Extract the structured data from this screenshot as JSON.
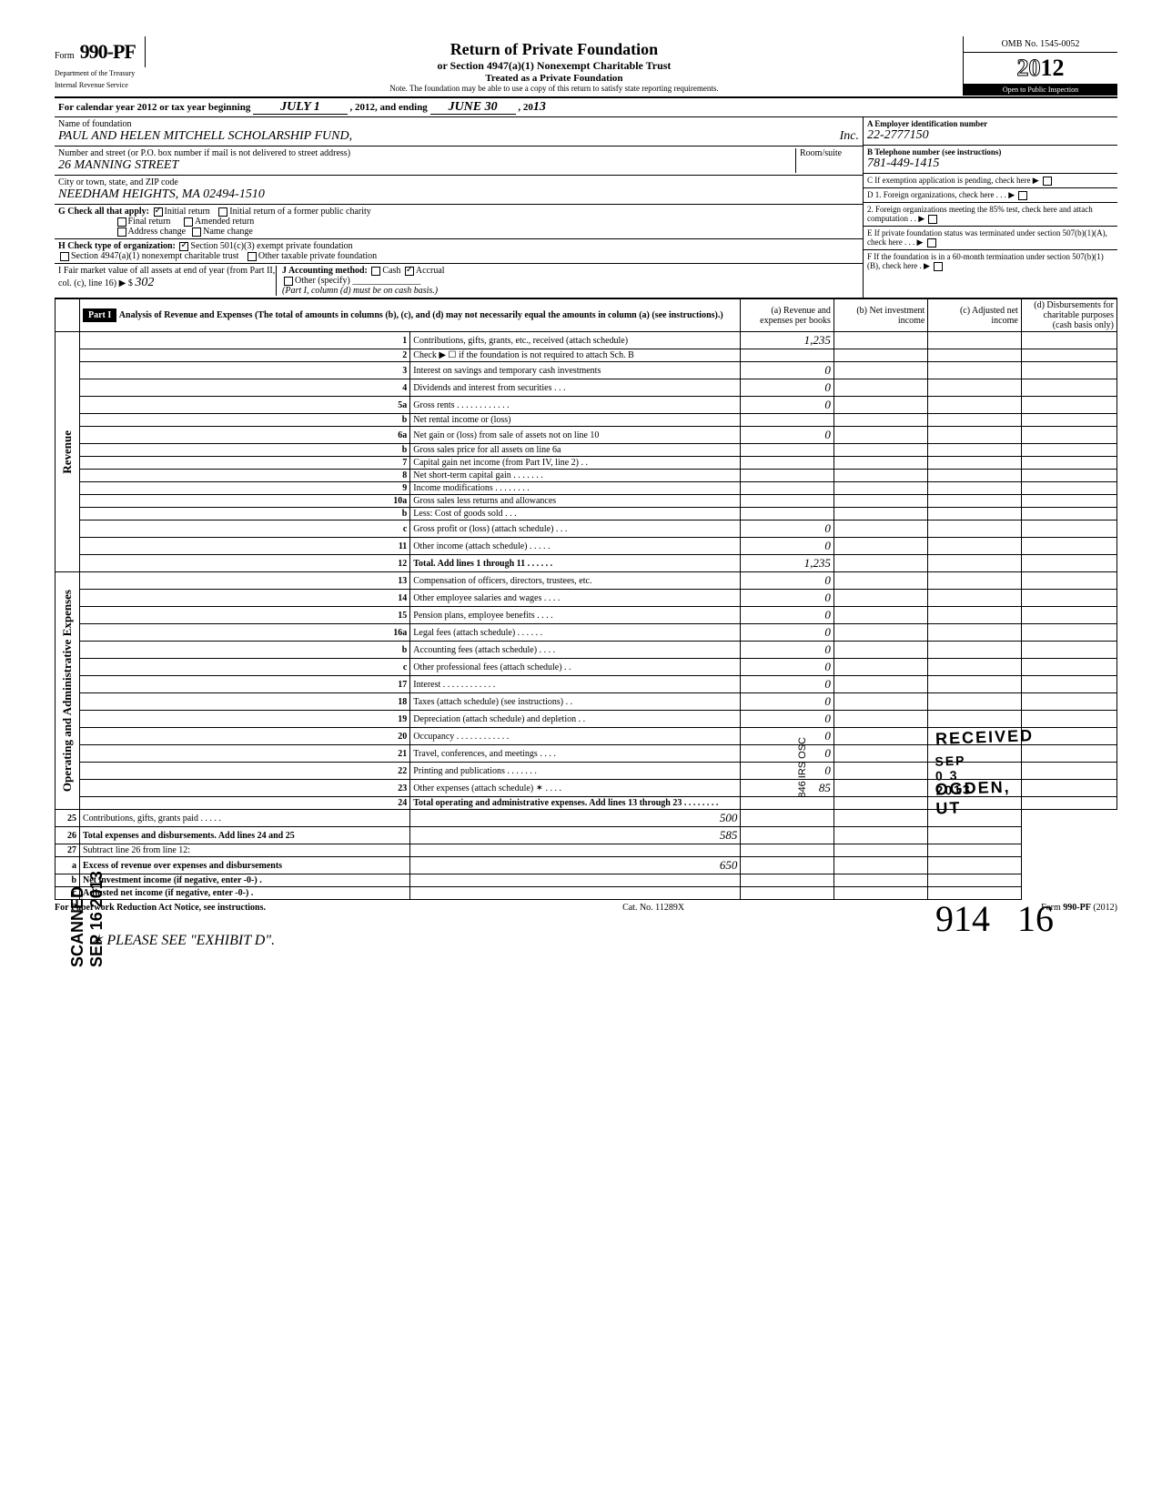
{
  "form": {
    "prefix": "Form",
    "number": "990-PF",
    "title": "Return of Private Foundation",
    "subtitle": "or Section 4947(a)(1) Nonexempt Charitable Trust",
    "subtitle2": "Treated as a Private Foundation",
    "note": "Note. The foundation may be able to use a copy of this return to satisfy state reporting requirements.",
    "dept1": "Department of the Treasury",
    "dept2": "Internal Revenue Service",
    "omb": "OMB No. 1545-0052",
    "year_prefix": "20",
    "year_bold": "12",
    "inspection": "Open to Public Inspection"
  },
  "cal": {
    "text": "For calendar year 2012 or tax year beginning",
    "begin": "JULY 1",
    "mid": ", 2012, and ending",
    "end": "JUNE 30",
    "end_yr_prefix": ", 20",
    "end_yr": "13"
  },
  "header": {
    "name_label": "Name of foundation",
    "name": "PAUL AND HELEN MITCHELL SCHOLARSHIP FUND,",
    "inc": "Inc.",
    "street_label": "Number and street (or P.O. box number if mail is not delivered to street address)",
    "street": "26 MANNING STREET",
    "room_label": "Room/suite",
    "city_label": "City or town, state, and ZIP code",
    "city": "NEEDHAM HEIGHTS, MA  02494-1510",
    "ein_label": "A Employer identification number",
    "ein": "22-2777150",
    "tel_label": "B Telephone number (see instructions)",
    "tel": "781-449-1415",
    "c_label": "C  If exemption application is pending, check here ▶",
    "d1_label": "D  1. Foreign organizations, check here . . . ▶",
    "d2_label": "2. Foreign organizations meeting the 85% test, check here and attach computation  . . ▶",
    "e_label": "E  If private foundation status was terminated under section 507(b)(1)(A), check here  . . . ▶",
    "f_label": "F  If the foundation is in a 60-month termination under section 507(b)(1)(B), check here  . ▶"
  },
  "g": {
    "label": "G  Check all that apply:",
    "initial": "Initial return",
    "initial_former": "Initial return of a former public charity",
    "final": "Final return",
    "amended": "Amended return",
    "address": "Address change",
    "name_change": "Name change"
  },
  "h": {
    "label": "H  Check type of organization:",
    "s501": "Section 501(c)(3) exempt private foundation",
    "s4947": "Section 4947(a)(1) nonexempt charitable trust",
    "other": "Other taxable private foundation"
  },
  "i": {
    "label": "I   Fair market value of all assets at end of year  (from Part II, col. (c), line 16) ▶ $",
    "value": "302",
    "j_label": "J  Accounting method:",
    "cash": "Cash",
    "accrual": "Accrual",
    "other_label": "Other (specify)",
    "note": "(Part I, column (d) must be on cash basis.)"
  },
  "part1": {
    "label": "Part I",
    "title": "Analysis of Revenue and Expenses (The total of amounts in columns (b), (c), and (d) may not necessarily equal the amounts in column (a) (see instructions).)",
    "col_a": "(a) Revenue and expenses per books",
    "col_b": "(b) Net investment income",
    "col_c": "(c) Adjusted net income",
    "col_d": "(d) Disbursements for charitable purposes (cash basis only)"
  },
  "sections": {
    "revenue": "Revenue",
    "expenses": "Operating and Administrative Expenses"
  },
  "lines": [
    {
      "n": "1",
      "d": "Contributions, gifts, grants, etc., received (attach schedule)",
      "a": "1,235"
    },
    {
      "n": "2",
      "d": "Check ▶ ☐ if the foundation is not required to attach Sch. B",
      "a": ""
    },
    {
      "n": "3",
      "d": "Interest on savings and temporary cash investments",
      "a": "0"
    },
    {
      "n": "4",
      "d": "Dividends and interest from securities  . . .",
      "a": "0"
    },
    {
      "n": "5a",
      "d": "Gross rents . . . . . . . . . . . .",
      "a": "0"
    },
    {
      "n": "b",
      "d": "Net rental income or (loss)",
      "a": ""
    },
    {
      "n": "6a",
      "d": "Net gain or (loss) from sale of assets not on line 10",
      "a": "0"
    },
    {
      "n": "b",
      "d": "Gross sales price for all assets on line 6a",
      "a": ""
    },
    {
      "n": "7",
      "d": "Capital gain net income (from Part IV, line 2) . .",
      "a": ""
    },
    {
      "n": "8",
      "d": "Net short-term capital gain . . . . . . .",
      "a": ""
    },
    {
      "n": "9",
      "d": "Income modifications  . . . . . . . .",
      "a": ""
    },
    {
      "n": "10a",
      "d": "Gross sales less returns and allowances",
      "a": ""
    },
    {
      "n": "b",
      "d": "Less: Cost of goods sold  . . .",
      "a": ""
    },
    {
      "n": "c",
      "d": "Gross profit or (loss) (attach schedule) . . .",
      "a": "0"
    },
    {
      "n": "11",
      "d": "Other income (attach schedule)  . . . . .",
      "a": "0"
    },
    {
      "n": "12",
      "d": "Total. Add lines 1 through 11 . . . . . .",
      "a": "1,235",
      "bold": true
    },
    {
      "n": "13",
      "d": "Compensation of officers, directors, trustees, etc.",
      "a": "0"
    },
    {
      "n": "14",
      "d": "Other employee salaries and wages . . . .",
      "a": "0"
    },
    {
      "n": "15",
      "d": "Pension plans, employee benefits  . . . .",
      "a": "0"
    },
    {
      "n": "16a",
      "d": "Legal fees (attach schedule)  . . . . . .",
      "a": "0"
    },
    {
      "n": "b",
      "d": "Accounting fees (attach schedule)  . . . .",
      "a": "0"
    },
    {
      "n": "c",
      "d": "Other professional fees (attach schedule) . .",
      "a": "0"
    },
    {
      "n": "17",
      "d": "Interest  . . . . . . . . . . . .",
      "a": "0"
    },
    {
      "n": "18",
      "d": "Taxes (attach schedule) (see instructions)  . .",
      "a": "0"
    },
    {
      "n": "19",
      "d": "Depreciation (attach schedule) and depletion . .",
      "a": "0"
    },
    {
      "n": "20",
      "d": "Occupancy . . . . . . . . . . . .",
      "a": "0"
    },
    {
      "n": "21",
      "d": "Travel, conferences, and meetings  . . . .",
      "a": "0"
    },
    {
      "n": "22",
      "d": "Printing and publications  . . . . . . .",
      "a": "0"
    },
    {
      "n": "23",
      "d": "Other expenses (attach schedule) ✶ . . . .",
      "a": "85"
    },
    {
      "n": "24",
      "d": "Total operating and administrative expenses. Add lines 13 through 23 . . . . . . . .",
      "a": "",
      "bold": true
    },
    {
      "n": "25",
      "d": "Contributions, gifts, grants paid  . . . . .",
      "a": "500"
    },
    {
      "n": "26",
      "d": "Total expenses and disbursements. Add lines 24 and 25",
      "a": "585",
      "bold": true
    },
    {
      "n": "27",
      "d": "Subtract line 26 from line 12:",
      "a": ""
    },
    {
      "n": "a",
      "d": "Excess of revenue over expenses and disbursements",
      "a": "650",
      "bold": true
    },
    {
      "n": "b",
      "d": "Net investment income (if negative, enter -0-)  .",
      "a": "",
      "bold": true
    },
    {
      "n": "c",
      "d": "Adjusted net income (if negative, enter -0-)  .",
      "a": "",
      "bold": true
    }
  ],
  "stamps": {
    "received": "RECEIVED",
    "recv_date": "SEP 0 3 2013",
    "ogden": "OGDEN, UT",
    "scanned": "SCANNED SEP 16 2013",
    "irs_side": "846  IRS  OSC"
  },
  "footer": {
    "left": "For Paperwork Reduction Act Notice, see instructions.",
    "mid": "Cat. No. 11289X",
    "right": "Form 990-PF (2012)"
  },
  "bottom": {
    "note": "✶  PLEASE SEE  \"EXHIBIT D\".",
    "hand1": "914",
    "hand2": "16"
  }
}
